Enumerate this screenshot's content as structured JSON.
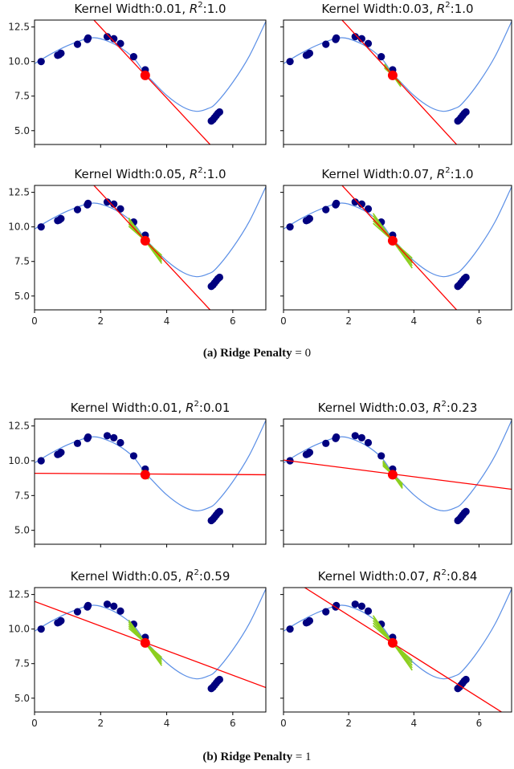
{
  "figure": {
    "captions": [
      {
        "label": "(a)",
        "text": "Ridge Penalty",
        "eq": "= 0"
      },
      {
        "label": "(b)",
        "text": "Ridge Penalty",
        "eq": "= 1"
      }
    ],
    "colors": {
      "points": "#00007f",
      "curve": "#5b8fe6",
      "line": "#ff0000",
      "explained": "#ff0000",
      "local": "#8ccf1e"
    }
  },
  "chart_data": [
    {
      "type": "scatter+line",
      "group": "(a)",
      "title_before": "Kernel Width:0.01, ",
      "title_symbol": "R",
      "title_exponent": "2",
      "title_after": ":1.0",
      "kernel_width": 0.01,
      "r2": 1.0,
      "fit": {
        "intercept": 17.6,
        "slope": -2.56
      },
      "local_spread": 0.0
    },
    {
      "type": "scatter+line",
      "group": "(a)",
      "title_before": "Kernel Width:0.03, ",
      "title_symbol": "R",
      "title_exponent": "2",
      "title_after": ":1.0",
      "kernel_width": 0.03,
      "r2": 1.0,
      "fit": {
        "intercept": 17.6,
        "slope": -2.56
      },
      "local_spread": 0.25
    },
    {
      "type": "scatter+line",
      "group": "(a)",
      "title_before": "Kernel Width:0.05, ",
      "title_symbol": "R",
      "title_exponent": "2",
      "title_after": ":1.0",
      "kernel_width": 0.05,
      "r2": 1.0,
      "fit": {
        "intercept": 17.6,
        "slope": -2.56
      },
      "local_spread": 0.5
    },
    {
      "type": "scatter+line",
      "group": "(a)",
      "title_before": "Kernel Width:0.07, ",
      "title_symbol": "R",
      "title_exponent": "2",
      "title_after": ":1.0",
      "kernel_width": 0.07,
      "r2": 1.0,
      "fit": {
        "intercept": 17.6,
        "slope": -2.56
      },
      "local_spread": 0.6
    },
    {
      "type": "scatter+line",
      "group": "(b)",
      "title_before": "Kernel Width:0.01, ",
      "title_symbol": "R",
      "title_exponent": "2",
      "title_after": ":0.01",
      "kernel_width": 0.01,
      "r2": 0.01,
      "fit": {
        "intercept": 9.1,
        "slope": -0.015
      },
      "local_spread": 0.1
    },
    {
      "type": "scatter+line",
      "group": "(b)",
      "title_before": "Kernel Width:0.03, ",
      "title_symbol": "R",
      "title_exponent": "2",
      "title_after": ":0.23",
      "kernel_width": 0.03,
      "r2": 0.23,
      "fit": {
        "intercept": 10.05,
        "slope": -0.3
      },
      "local_spread": 0.3
    },
    {
      "type": "scatter+line",
      "group": "(b)",
      "title_before": "Kernel Width:0.05, ",
      "title_symbol": "R",
      "title_exponent": "2",
      "title_after": ":0.59",
      "kernel_width": 0.05,
      "r2": 0.59,
      "fit": {
        "intercept": 12.0,
        "slope": -0.89
      },
      "local_spread": 0.5
    },
    {
      "type": "scatter+line",
      "group": "(b)",
      "title_before": "Kernel Width:0.07, ",
      "title_symbol": "R",
      "title_exponent": "2",
      "title_after": ":0.84",
      "kernel_width": 0.07,
      "r2": 0.84,
      "fit": {
        "intercept": 13.97,
        "slope": -1.49
      },
      "local_spread": 0.6
    }
  ],
  "shared": {
    "xlim": [
      0,
      7
    ],
    "ylim": [
      4,
      13
    ],
    "xticks": [
      0,
      2,
      4,
      6
    ],
    "xtick_labels": [
      "0",
      "2",
      "4",
      "6"
    ],
    "yticks": [
      5.0,
      7.5,
      10.0,
      12.5
    ],
    "ytick_labels": [
      "5.0",
      "7.5",
      "10.0",
      "12.5"
    ],
    "points": {
      "x": [
        0.2,
        0.7,
        0.75,
        0.8,
        1.3,
        1.6,
        1.62,
        2.2,
        2.4,
        2.6,
        3.0,
        3.35,
        5.35,
        5.4,
        5.45,
        5.5,
        5.55,
        5.6
      ],
      "y": [
        10.0,
        10.45,
        10.5,
        10.6,
        11.25,
        11.6,
        11.7,
        11.8,
        11.65,
        11.3,
        10.35,
        9.4,
        5.7,
        5.8,
        5.95,
        6.1,
        6.25,
        6.35
      ]
    },
    "explained_point": {
      "x": 3.35,
      "y": 9.0
    },
    "curve": {
      "x": [
        0,
        0.5,
        1.0,
        1.5,
        1.75,
        2.0,
        2.5,
        3.0,
        3.35,
        3.5,
        4.0,
        4.5,
        4.9,
        5.25,
        5.5,
        6.0,
        6.5,
        7.0
      ],
      "y": [
        9.85,
        10.55,
        11.15,
        11.6,
        11.72,
        11.65,
        11.15,
        10.25,
        9.1,
        8.75,
        7.55,
        6.7,
        6.4,
        6.6,
        7.0,
        8.5,
        10.4,
        12.9
      ]
    }
  }
}
